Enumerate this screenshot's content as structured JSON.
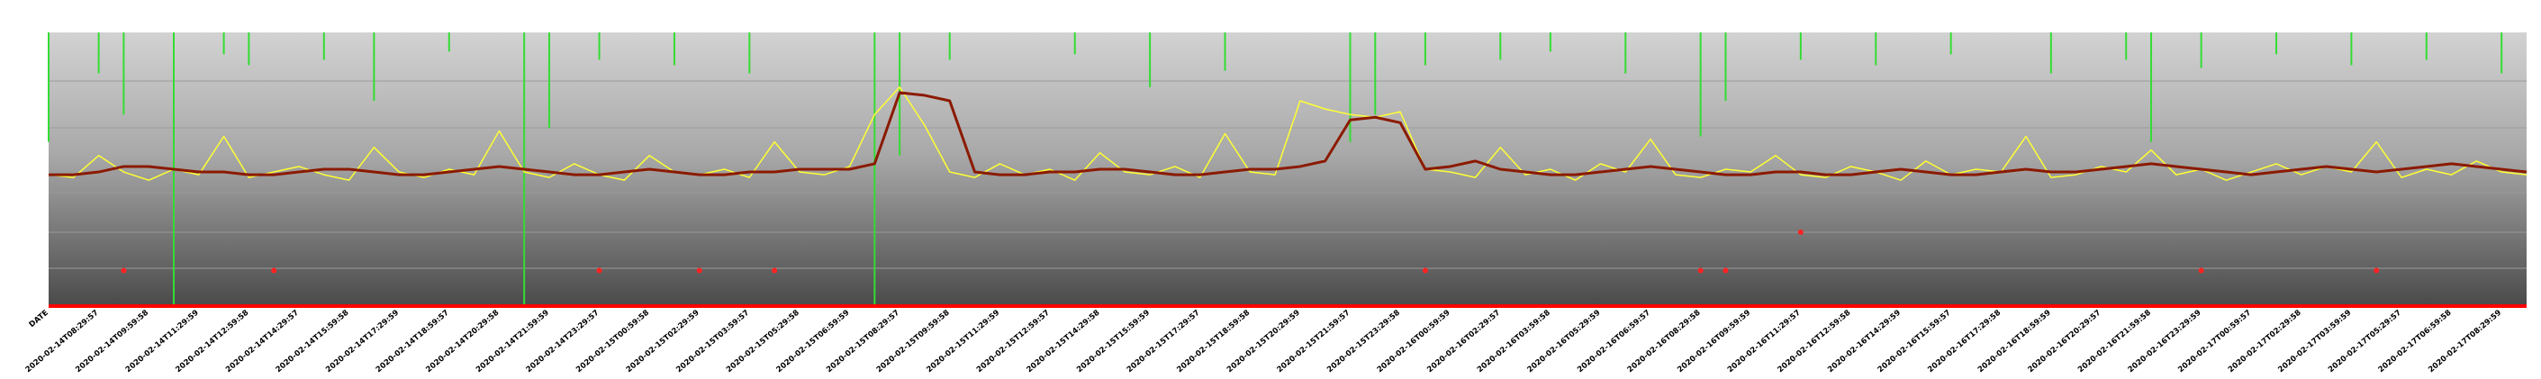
{
  "chart_data": {
    "type": "line",
    "ylim": [
      0,
      100
    ],
    "categories": [
      "DATE",
      null,
      "2020-02-14T08:29:57",
      null,
      "2020-02-14T09:59:58",
      null,
      "2020-02-14T11:29:59",
      null,
      "2020-02-14T12:59:58",
      null,
      "2020-02-14T14:29:57",
      null,
      "2020-02-14T15:59:58",
      null,
      "2020-02-14T17:29:59",
      null,
      "2020-02-14T18:59:57",
      null,
      "2020-02-14T20:29:58",
      null,
      "2020-02-14T21:59:59",
      null,
      "2020-02-14T23:29:57",
      null,
      "2020-02-15T00:59:58",
      null,
      "2020-02-15T02:29:59",
      null,
      "2020-02-15T03:59:57",
      null,
      "2020-02-15T05:29:58",
      null,
      "2020-02-15T06:59:59",
      null,
      "2020-02-15T08:29:57",
      null,
      "2020-02-15T09:59:58",
      null,
      "2020-02-15T11:29:59",
      null,
      "2020-02-15T12:59:57",
      null,
      "2020-02-15T14:29:58",
      null,
      "2020-02-15T15:59:59",
      null,
      "2020-02-15T17:29:57",
      null,
      "2020-02-15T18:59:58",
      null,
      "2020-02-15T20:29:59",
      null,
      "2020-02-15T21:59:57",
      null,
      "2020-02-15T23:29:58",
      null,
      "2020-02-16T00:59:59",
      null,
      "2020-02-16T02:29:57",
      null,
      "2020-02-16T03:59:58",
      null,
      "2020-02-16T05:29:59",
      null,
      "2020-02-16T06:59:57",
      null,
      "2020-02-16T08:29:58",
      null,
      "2020-02-16T09:59:59",
      null,
      "2020-02-16T11:29:57",
      null,
      "2020-02-16T12:59:58",
      null,
      "2020-02-16T14:29:59",
      null,
      "2020-02-16T15:59:57",
      null,
      "2020-02-16T17:29:58",
      null,
      "2020-02-16T18:59:59",
      null,
      "2020-02-16T20:29:57",
      null,
      "2020-02-16T21:59:58",
      null,
      "2020-02-16T23:29:59",
      null,
      "2020-02-17T00:59:57",
      null,
      "2020-02-17T02:29:58",
      null,
      "2020-02-17T03:59:59",
      null,
      "2020-02-17T05:29:57",
      null,
      "2020-02-17T06:59:58",
      null,
      "2020-02-17T08:29:59",
      null
    ],
    "series": [
      {
        "kind": "spike",
        "color": "#33dd33",
        "values": [
          60,
          null,
          85,
          70,
          null,
          0,
          null,
          92,
          88,
          null,
          null,
          90,
          null,
          75,
          null,
          null,
          93,
          null,
          null,
          0,
          65,
          null,
          90,
          null,
          null,
          88,
          null,
          null,
          85,
          null,
          null,
          null,
          null,
          0,
          55,
          null,
          90,
          null,
          null,
          null,
          null,
          92,
          null,
          null,
          80,
          null,
          null,
          86,
          null,
          null,
          null,
          null,
          60,
          70,
          null,
          88,
          null,
          null,
          90,
          null,
          93,
          null,
          null,
          85,
          null,
          null,
          62,
          75,
          null,
          null,
          90,
          null,
          null,
          88,
          null,
          null,
          92,
          null,
          null,
          null,
          85,
          null,
          null,
          90,
          60,
          null,
          87,
          null,
          null,
          92,
          null,
          null,
          88,
          null,
          null,
          90,
          null,
          null,
          85,
          null
        ]
      },
      {
        "kind": "line",
        "color": "#ffff33",
        "values": [
          48,
          47,
          55,
          49,
          46,
          50,
          48,
          62,
          47,
          49,
          51,
          48,
          46,
          58,
          49,
          47,
          50,
          48,
          64,
          49,
          47,
          52,
          48,
          46,
          55,
          49,
          48,
          50,
          47,
          60,
          49,
          48,
          51,
          70,
          80,
          66,
          49,
          47,
          52,
          48,
          50,
          46,
          56,
          49,
          48,
          51,
          47,
          63,
          49,
          48,
          75,
          72,
          70,
          69,
          71,
          50,
          49,
          47,
          58,
          48,
          50,
          46,
          52,
          49,
          61,
          48,
          47,
          50,
          49,
          55,
          48,
          47,
          51,
          49,
          46,
          53,
          48,
          50,
          49,
          62,
          47,
          48,
          51,
          49,
          57,
          48,
          50,
          46,
          49,
          52,
          48,
          51,
          49,
          60,
          47,
          50,
          48,
          53,
          49,
          48
        ]
      },
      {
        "kind": "line",
        "color": "#8b1a00",
        "values": [
          48,
          48,
          49,
          51,
          51,
          50,
          49,
          49,
          48,
          48,
          49,
          50,
          50,
          49,
          48,
          48,
          49,
          50,
          51,
          50,
          49,
          48,
          48,
          49,
          50,
          49,
          48,
          48,
          49,
          49,
          50,
          50,
          50,
          52,
          78,
          77,
          75,
          49,
          48,
          48,
          49,
          49,
          50,
          50,
          49,
          48,
          48,
          49,
          50,
          50,
          51,
          53,
          68,
          69,
          67,
          50,
          51,
          53,
          50,
          49,
          48,
          48,
          49,
          50,
          51,
          50,
          49,
          48,
          48,
          49,
          49,
          48,
          48,
          49,
          50,
          49,
          48,
          48,
          49,
          50,
          49,
          49,
          50,
          51,
          52,
          51,
          50,
          49,
          48,
          49,
          50,
          51,
          50,
          49,
          50,
          51,
          52,
          51,
          50,
          49
        ]
      },
      {
        "kind": "dot",
        "color": "#ff2222",
        "values": [
          null,
          null,
          null,
          13,
          null,
          null,
          null,
          null,
          null,
          13,
          null,
          null,
          null,
          null,
          null,
          null,
          null,
          null,
          null,
          null,
          null,
          null,
          13,
          null,
          null,
          null,
          13,
          null,
          null,
          13,
          null,
          null,
          null,
          null,
          null,
          null,
          null,
          null,
          null,
          null,
          null,
          null,
          null,
          null,
          null,
          null,
          null,
          null,
          null,
          null,
          null,
          null,
          null,
          null,
          null,
          13,
          null,
          null,
          null,
          null,
          null,
          null,
          null,
          null,
          null,
          null,
          13,
          13,
          null,
          null,
          27,
          null,
          null,
          null,
          null,
          null,
          null,
          null,
          null,
          null,
          null,
          null,
          null,
          null,
          null,
          null,
          13,
          null,
          null,
          null,
          null,
          null,
          null,
          13,
          null,
          null,
          null,
          null,
          null,
          null
        ]
      }
    ]
  }
}
